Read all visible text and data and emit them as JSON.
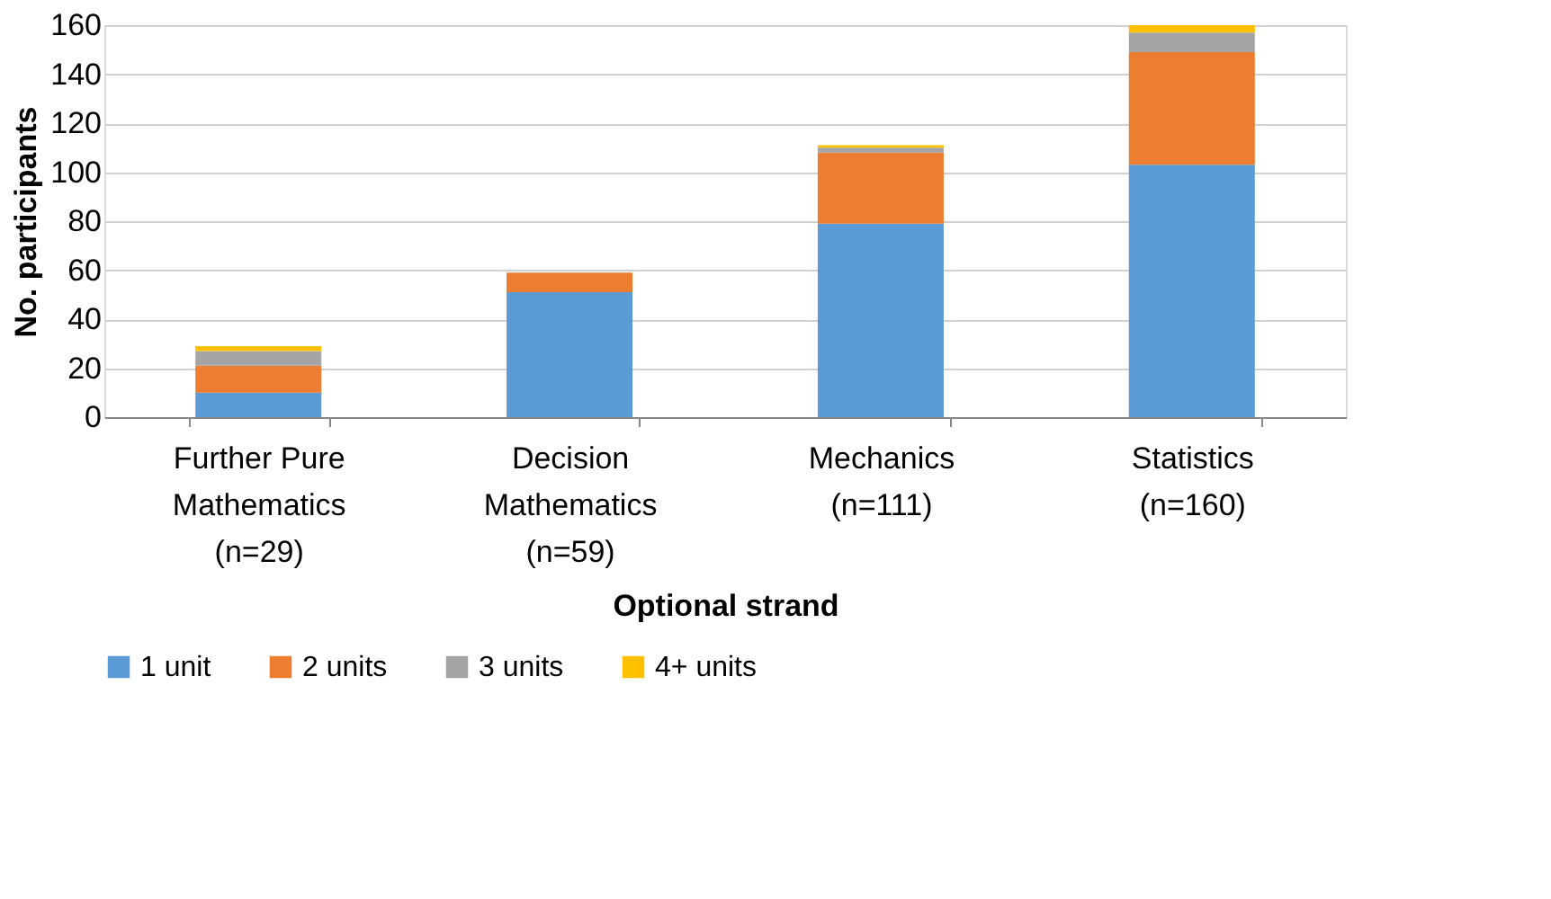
{
  "chart_data": {
    "type": "bar",
    "stacked": true,
    "xlabel": "Optional strand",
    "ylabel": "No. participants",
    "categories": [
      "Further Pure\nMathematics\n(n=29)",
      "Decision\nMathematics\n(n=59)",
      "Mechanics\n(n=111)",
      "Statistics\n(n=160)"
    ],
    "series": [
      {
        "name": "1 unit",
        "color": "#5b9bd5",
        "values": [
          10,
          51,
          79,
          103
        ]
      },
      {
        "name": "2 units",
        "color": "#ed7d31",
        "values": [
          11,
          8,
          29,
          46
        ]
      },
      {
        "name": "3 units",
        "color": "#a5a5a5",
        "values": [
          6,
          0,
          2,
          8
        ]
      },
      {
        "name": "4+ units",
        "color": "#ffc000",
        "values": [
          2,
          0,
          1,
          3
        ]
      }
    ],
    "ylim": [
      0,
      160
    ],
    "yticks": [
      0,
      20,
      40,
      60,
      80,
      100,
      120,
      140,
      160
    ],
    "grid": "y",
    "legend": "bottom"
  }
}
